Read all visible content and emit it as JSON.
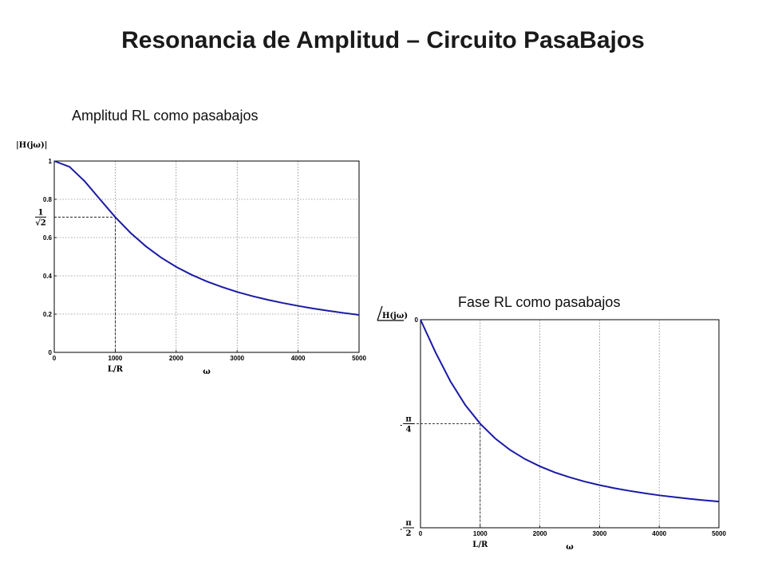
{
  "slide": {
    "title": "Resonancia de Amplitud – Circuito PasaBajos"
  },
  "chart_data": [
    {
      "type": "line",
      "title": "Amplitud RL como pasabajos",
      "ylabel": "|H(jω)|",
      "xlabel": "ω",
      "marker_label": "L/R",
      "xlim": [
        0,
        5000
      ],
      "ylim": [
        0,
        1
      ],
      "grid": true,
      "x_ticks": [
        "0",
        "1000",
        "2000",
        "3000",
        "4000",
        "5000"
      ],
      "y_ticks": [
        {
          "value": 0,
          "label": "0"
        },
        {
          "value": 0.2,
          "label": "0.2"
        },
        {
          "value": 0.4,
          "label": "0.4"
        },
        {
          "value": 0.6,
          "label": "0.6"
        },
        {
          "value": 0.8,
          "label": "0.8"
        },
        {
          "value": 1,
          "label": "1"
        }
      ],
      "special_y_tick": {
        "value": 0.7071,
        "numerator": "1",
        "denominator": "√2"
      },
      "reference_point": {
        "x": 1000,
        "y": 0.7071
      },
      "series": [
        {
          "color": "#1a1aa6",
          "x": [
            0,
            250,
            500,
            750,
            1000,
            1250,
            1500,
            1750,
            2000,
            2250,
            2500,
            2750,
            3000,
            3250,
            3500,
            3750,
            4000,
            4250,
            4500,
            4750,
            5000
          ],
          "y": [
            1.0,
            0.97,
            0.894,
            0.8,
            0.707,
            0.625,
            0.555,
            0.496,
            0.447,
            0.406,
            0.371,
            0.342,
            0.316,
            0.294,
            0.275,
            0.258,
            0.243,
            0.229,
            0.217,
            0.206,
            0.196
          ]
        }
      ]
    },
    {
      "type": "line",
      "title": "Fase RL como pasabajos",
      "ylabel": "H(jω)",
      "xlabel": "ω",
      "marker_label": "L/R",
      "xlim": [
        0,
        5000
      ],
      "ylim": [
        -1.5708,
        0
      ],
      "grid": true,
      "x_ticks": [
        "0",
        "1000",
        "2000",
        "3000",
        "4000",
        "5000"
      ],
      "y_ticks": [
        {
          "value": 0,
          "label": "0"
        }
      ],
      "special_y_ticks": [
        {
          "value": -0.7854,
          "sign": "-",
          "numerator": "π",
          "denominator": "4"
        },
        {
          "value": -1.5708,
          "sign": "-",
          "numerator": "π",
          "denominator": "2"
        }
      ],
      "reference_point": {
        "x": 1000,
        "y": -0.7854
      },
      "series": [
        {
          "color": "#1a1aa6",
          "x": [
            0,
            250,
            500,
            750,
            1000,
            1250,
            1500,
            1750,
            2000,
            2250,
            2500,
            2750,
            3000,
            3250,
            3500,
            3750,
            4000,
            4250,
            4500,
            4750,
            5000
          ],
          "y": [
            0,
            -0.245,
            -0.464,
            -0.644,
            -0.785,
            -0.896,
            -0.983,
            -1.052,
            -1.107,
            -1.153,
            -1.19,
            -1.222,
            -1.249,
            -1.272,
            -1.292,
            -1.31,
            -1.326,
            -1.339,
            -1.352,
            -1.363,
            -1.373
          ]
        }
      ]
    }
  ]
}
